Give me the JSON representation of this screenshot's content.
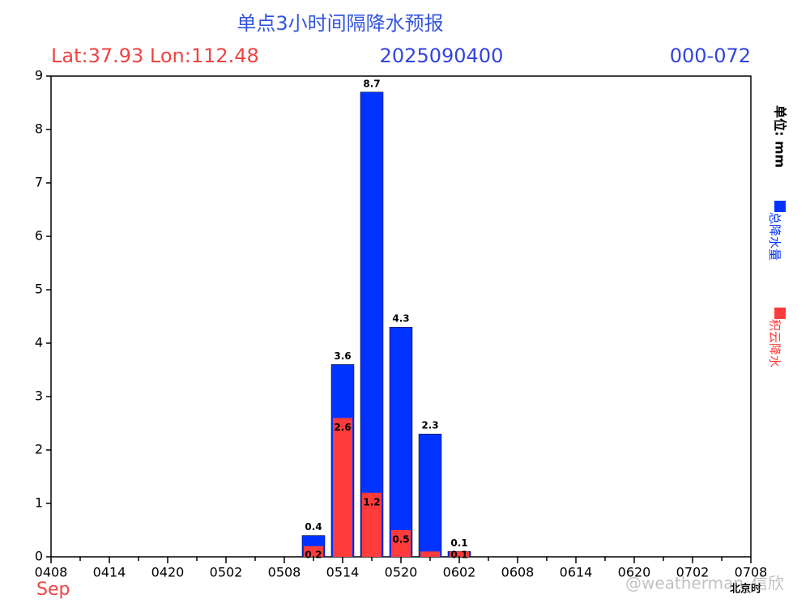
{
  "chart_data": {
    "type": "bar",
    "title": "单点3小时间隔降水预报",
    "location": "Lat:37.93 Lon:112.48",
    "init_time": "2025090400",
    "lead_range": "000-072",
    "month": "Sep",
    "unit": "单位: mm",
    "x_label": "北京时",
    "watermark": "@weatherman_信欣",
    "categories": [
      "0408",
      null,
      "0414",
      null,
      "0420",
      null,
      "0502",
      null,
      "0508",
      null,
      "0514",
      null,
      "0520",
      null,
      "0602",
      null,
      "0608",
      null,
      "0614",
      null,
      "0620",
      null,
      "0702",
      null,
      "0708"
    ],
    "series": [
      {
        "name": "总降水量",
        "color": "#0033ff",
        "values": [
          0,
          0,
          0,
          0,
          0,
          0,
          0,
          0,
          0,
          0.4,
          3.6,
          8.7,
          4.3,
          2.3,
          0.1,
          0,
          0,
          0,
          0,
          0,
          0,
          0,
          0,
          0,
          0
        ],
        "value_labels": [
          null,
          null,
          null,
          null,
          null,
          null,
          null,
          null,
          null,
          "0.4",
          "3.6",
          "8.7",
          "4.3",
          "2.3",
          "0.1",
          null,
          null,
          null,
          null,
          null,
          null,
          null,
          null,
          null,
          null
        ]
      },
      {
        "name": "积云降水",
        "color": "#ff3b3b",
        "values": [
          0,
          0,
          0,
          0,
          0,
          0,
          0,
          0,
          0,
          0.2,
          2.6,
          1.2,
          0.5,
          0.1,
          0.1,
          0,
          0,
          0,
          0,
          0,
          0,
          0,
          0,
          0,
          0
        ],
        "value_labels": [
          null,
          null,
          null,
          null,
          null,
          null,
          null,
          null,
          null,
          "0.2",
          "2.6",
          "1.2",
          "0.5",
          null,
          "0.1",
          null,
          null,
          null,
          null,
          null,
          null,
          null,
          null,
          null,
          null
        ]
      }
    ],
    "ylim": [
      0,
      9
    ],
    "yticks": [
      0,
      1,
      2,
      3,
      4,
      5,
      6,
      7,
      8,
      9
    ]
  }
}
